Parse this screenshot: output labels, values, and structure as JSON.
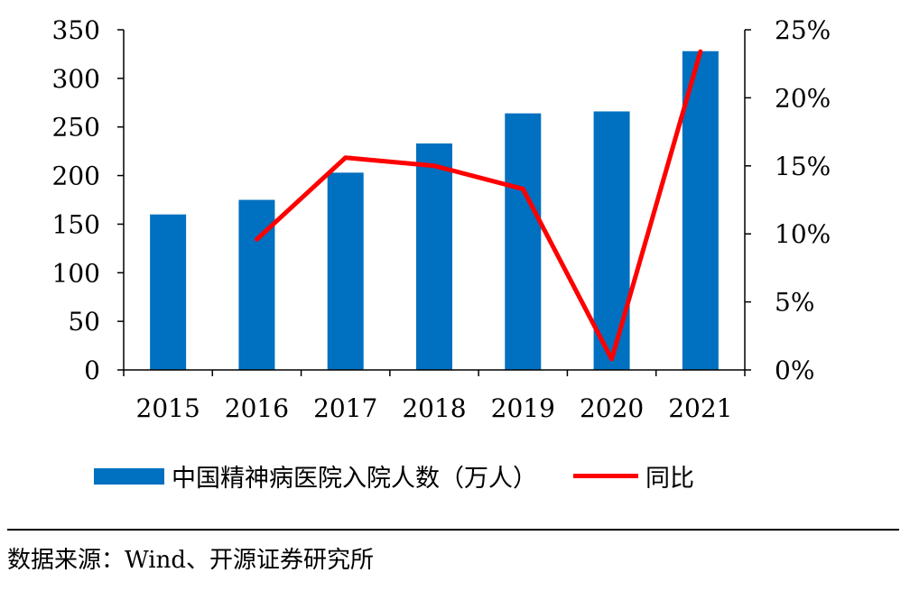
{
  "chart_data": {
    "type": "bar",
    "categories": [
      "2015",
      "2016",
      "2017",
      "2018",
      "2019",
      "2020",
      "2021"
    ],
    "series": [
      {
        "name": "中国精神病医院入院人数（万人）",
        "type": "bar",
        "axis": "left",
        "values": [
          160,
          175,
          203,
          233,
          264,
          266,
          328
        ]
      },
      {
        "name": "同比",
        "type": "line",
        "axis": "right",
        "values": [
          null,
          9.6,
          15.6,
          15.0,
          13.3,
          0.8,
          23.4
        ]
      }
    ],
    "y_left": {
      "min": 0,
      "max": 350,
      "ticks": [
        "0",
        "50",
        "100",
        "150",
        "200",
        "250",
        "300",
        "350"
      ]
    },
    "y_right": {
      "min": 0,
      "max": 25,
      "ticks": [
        "0%",
        "5%",
        "10%",
        "15%",
        "20%",
        "25%"
      ]
    },
    "colors": {
      "bar": "#0070C0",
      "line": "#FF0000"
    }
  },
  "legend": {
    "bar_label": "中国精神病医院入院人数（万人）",
    "line_label": "同比"
  },
  "source": "数据来源：Wind、开源证券研究所"
}
